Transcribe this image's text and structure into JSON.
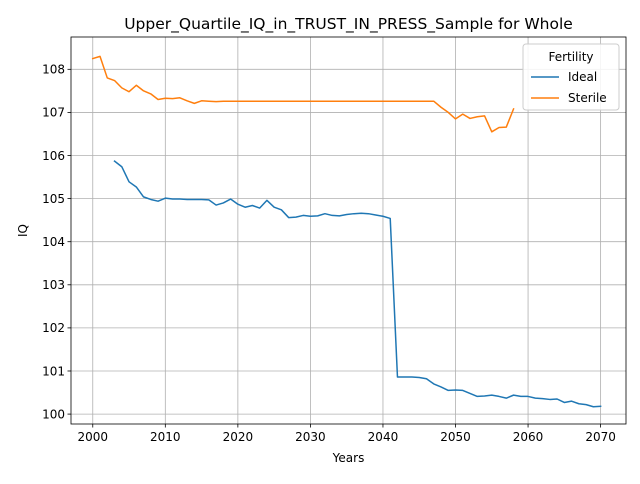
{
  "chart_data": {
    "type": "line",
    "title": "Upper_Quartile_IQ_in_TRUST_IN_PRESS_Sample for Whole",
    "xlabel": "Years",
    "ylabel": "IQ",
    "xlim": [
      1997,
      2073.5
    ],
    "ylim": [
      99.77,
      108.75
    ],
    "x_ticks": [
      2000,
      2010,
      2020,
      2030,
      2040,
      2050,
      2060,
      2070
    ],
    "y_ticks": [
      100,
      101,
      102,
      103,
      104,
      105,
      106,
      107,
      108
    ],
    "grid": true,
    "legend": {
      "title": "Fertility",
      "placement": "top-right"
    },
    "series": [
      {
        "name": "Ideal",
        "color": "#1f77b4",
        "x": [
          2003,
          2004,
          2005,
          2006,
          2007,
          2008,
          2009,
          2010,
          2011,
          2012,
          2013,
          2014,
          2015,
          2016,
          2017,
          2018,
          2019,
          2020,
          2021,
          2022,
          2023,
          2024,
          2025,
          2026,
          2027,
          2028,
          2029,
          2030,
          2031,
          2032,
          2033,
          2034,
          2035,
          2036,
          2037,
          2038,
          2039,
          2040,
          2041,
          2042,
          2043,
          2044,
          2045,
          2046,
          2047,
          2048,
          2049,
          2050,
          2051,
          2052,
          2053,
          2054,
          2055,
          2056,
          2057,
          2058,
          2059,
          2060,
          2061,
          2062,
          2063,
          2064,
          2065,
          2066,
          2067,
          2068,
          2069,
          2070
        ],
        "values": [
          105.87,
          105.74,
          105.39,
          105.27,
          105.04,
          104.98,
          104.94,
          105.01,
          104.99,
          104.99,
          104.98,
          104.98,
          104.98,
          104.97,
          104.85,
          104.9,
          104.99,
          104.87,
          104.8,
          104.84,
          104.78,
          104.96,
          104.8,
          104.74,
          104.56,
          104.57,
          104.61,
          104.59,
          104.6,
          104.65,
          104.61,
          104.6,
          104.63,
          104.65,
          104.66,
          104.65,
          104.62,
          104.59,
          104.54,
          100.86,
          100.86,
          100.86,
          100.85,
          100.82,
          100.7,
          100.63,
          100.55,
          100.56,
          100.55,
          100.48,
          100.41,
          100.42,
          100.44,
          100.41,
          100.37,
          100.44,
          100.41,
          100.41,
          100.37,
          100.36,
          100.34,
          100.35,
          100.27,
          100.3,
          100.24,
          100.22,
          100.17,
          100.18
        ]
      },
      {
        "name": "Sterile",
        "color": "#ff7f0e",
        "x": [
          2000,
          2001,
          2002,
          2003,
          2004,
          2005,
          2006,
          2007,
          2008,
          2009,
          2010,
          2011,
          2012,
          2013,
          2014,
          2015,
          2016,
          2017,
          2018,
          2019,
          2020,
          2021,
          2022,
          2023,
          2024,
          2025,
          2026,
          2027,
          2028,
          2029,
          2030,
          2031,
          2032,
          2033,
          2034,
          2035,
          2036,
          2037,
          2038,
          2039,
          2040,
          2041,
          2042,
          2043,
          2044,
          2045,
          2046,
          2047,
          2048,
          2049,
          2050,
          2051,
          2052,
          2053,
          2054,
          2055,
          2056,
          2057,
          2058
        ],
        "values": [
          108.25,
          108.3,
          107.8,
          107.74,
          107.57,
          107.48,
          107.63,
          107.5,
          107.43,
          107.3,
          107.33,
          107.32,
          107.34,
          107.27,
          107.21,
          107.27,
          107.26,
          107.25,
          107.26,
          107.26,
          107.26,
          107.26,
          107.26,
          107.26,
          107.26,
          107.26,
          107.26,
          107.26,
          107.26,
          107.26,
          107.26,
          107.26,
          107.26,
          107.26,
          107.26,
          107.26,
          107.26,
          107.26,
          107.26,
          107.26,
          107.26,
          107.26,
          107.26,
          107.26,
          107.26,
          107.26,
          107.26,
          107.26,
          107.12,
          107.0,
          106.85,
          106.96,
          106.86,
          106.9,
          106.92,
          106.55,
          106.65,
          106.66,
          107.08
        ]
      }
    ]
  }
}
